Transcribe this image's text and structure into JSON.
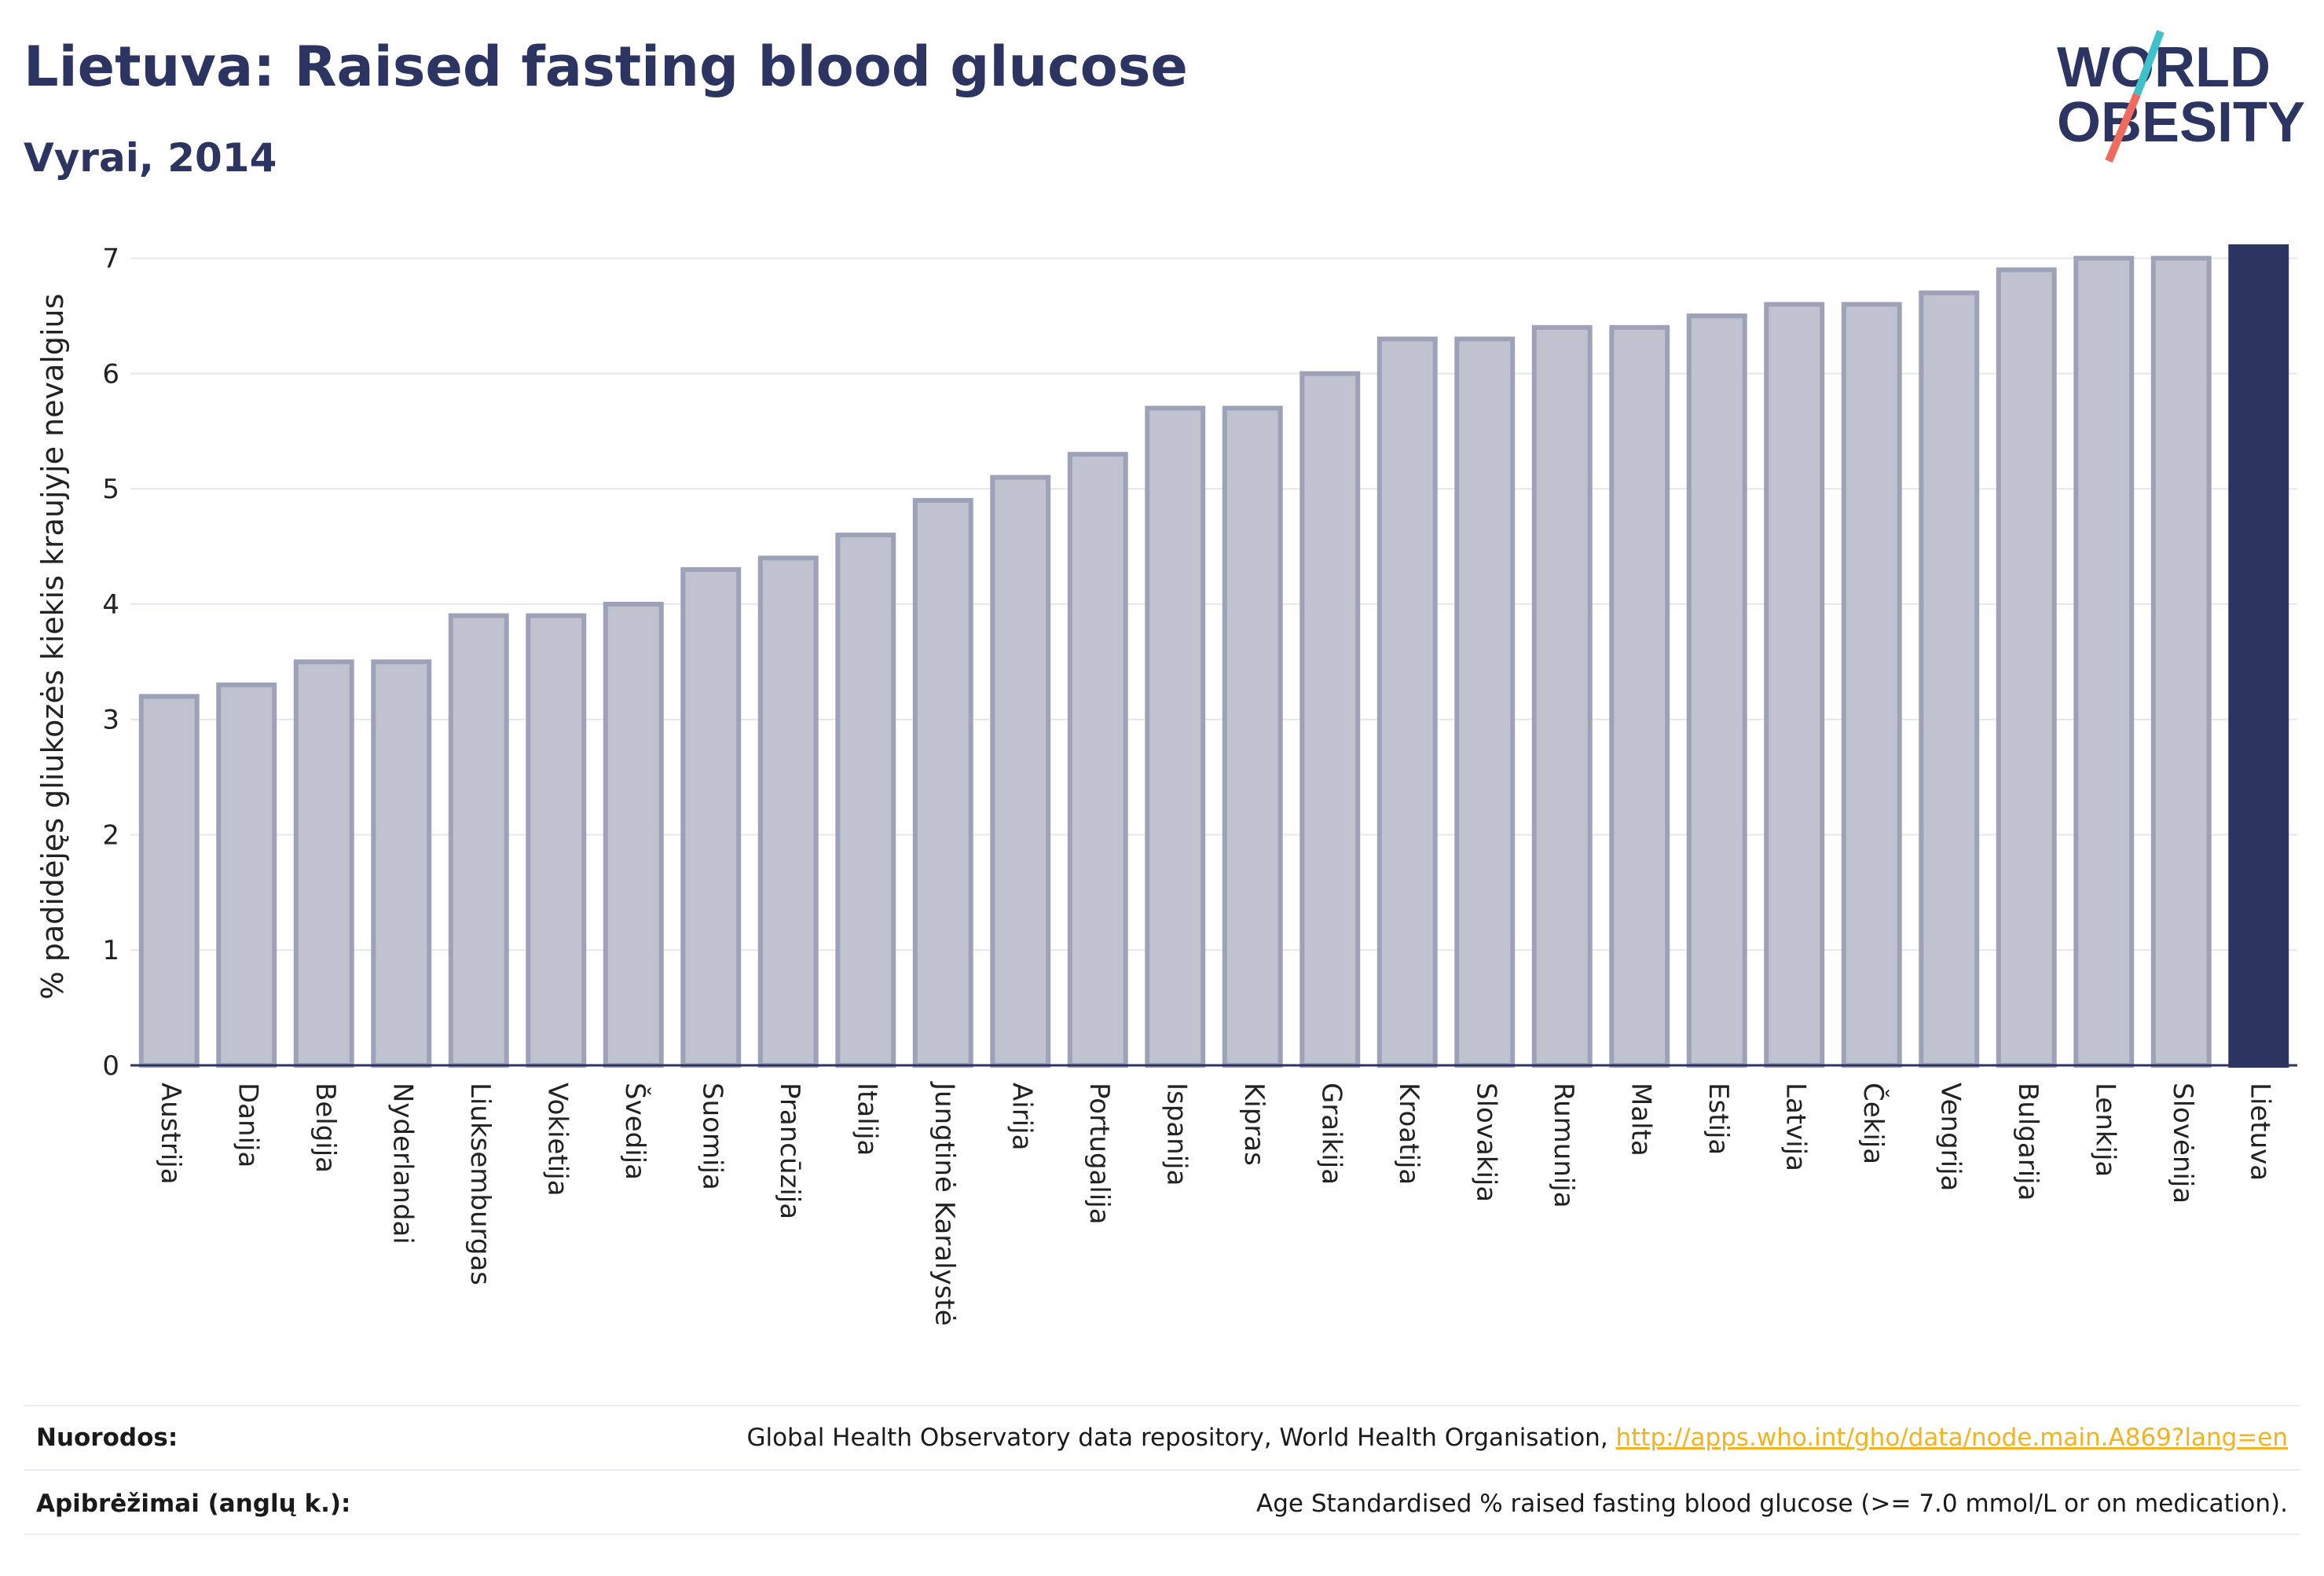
{
  "header": {
    "title": "Lietuva: Raised fasting blood glucose",
    "subtitle": "Vyrai, 2014"
  },
  "logo": {
    "line1": "WORLD",
    "line2": "OBESITY",
    "slash_colors": [
      "#3fc1c9",
      "#f06a5d"
    ]
  },
  "chart_data": {
    "type": "bar",
    "ylabel": "% padidėjęs gliukozės kiekis kraujyje nevalgius",
    "xlabel": "",
    "ylim": [
      0,
      7.4
    ],
    "yticks": [
      0,
      1,
      2,
      3,
      4,
      5,
      6,
      7
    ],
    "grid": true,
    "categories": [
      "Austrija",
      "Danija",
      "Belgija",
      "Nyderlandai",
      "Liuksemburgas",
      "Vokietija",
      "Švedija",
      "Suomija",
      "Prancūzija",
      "Italija",
      "Jungtinė Karalystė",
      "Airija",
      "Portugalija",
      "Ispanija",
      "Kipras",
      "Graikija",
      "Kroatija",
      "Slovakija",
      "Rumunija",
      "Malta",
      "Estija",
      "Latvija",
      "Čekija",
      "Vengrija",
      "Bulgarija",
      "Lenkija",
      "Slovėnija",
      "Lietuva"
    ],
    "values": [
      3.2,
      3.3,
      3.5,
      3.5,
      3.9,
      3.9,
      4.0,
      4.3,
      4.4,
      4.6,
      4.9,
      5.1,
      5.3,
      5.7,
      5.7,
      6.0,
      6.3,
      6.3,
      6.4,
      6.4,
      6.5,
      6.6,
      6.6,
      6.7,
      6.9,
      7.0,
      7.0,
      7.1
    ],
    "highlight": "Lietuva",
    "colors": {
      "bar_fill": "#bfc2cf",
      "bar_stroke": "#9da2b8",
      "highlight": "#2c3561",
      "grid": "#e6e7ec",
      "axis": "#2c3561"
    }
  },
  "footer": {
    "sources_label": "Nuorodos:",
    "sources_text": "Global Health Observatory data repository, World Health Organisation, ",
    "sources_link": "http://apps.who.int/gho/data/node.main.A869?lang=en",
    "definitions_label": "Apibrėžimai (anglų k.):",
    "definitions_text": "Age Standardised % raised fasting blood glucose (>= 7.0 mmol/L or on medication)."
  }
}
